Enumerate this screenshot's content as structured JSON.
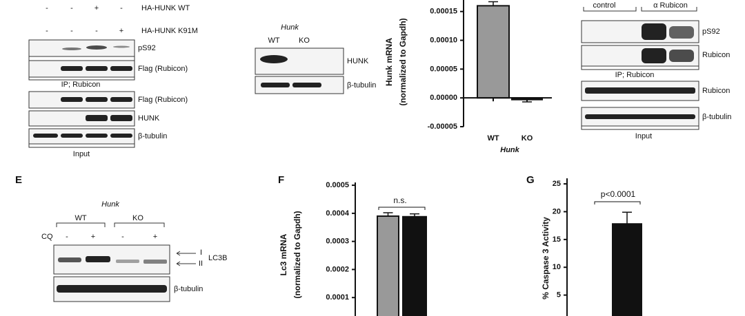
{
  "panels": {
    "a": {
      "rows": [
        [
          "-",
          "-",
          "+",
          "-"
        ],
        [
          "-",
          "-",
          "-",
          "+"
        ]
      ],
      "row_labels": [
        "HA-HUNK WT",
        "HA-HUNK K91M"
      ],
      "blot_labels": [
        "pS92",
        "Flag (Rubicon)",
        "Flag (Rubicon)",
        "HUNK",
        "β-tubulin"
      ],
      "ip_label": "IP; Rubicon",
      "input_label": "Input"
    },
    "b": {
      "gene": "Hunk",
      "groups": [
        "WT",
        "KO"
      ],
      "blot_labels": [
        "HUNK",
        "β-tubulin"
      ]
    },
    "d": {
      "groups": [
        "control",
        "α Rubicon"
      ],
      "blot_labels": [
        "pS92",
        "Rubicon",
        "Rubicon",
        "β-tubulin"
      ],
      "ip_label": "IP; Rubicon",
      "input_label": "Input"
    },
    "e": {
      "letter": "E",
      "gene": "Hunk",
      "groups": [
        "WT",
        "KO"
      ],
      "treatment": "CQ",
      "treatment_signs": [
        "-",
        "+",
        "-",
        "+"
      ],
      "band_labels": [
        "I",
        "II"
      ],
      "protein": "LC3B",
      "loading": "β-tubulin"
    }
  },
  "chart_data": [
    {
      "type": "bar",
      "y_label": [
        "Hunk mRNA",
        "(normalized to Gapdh)"
      ],
      "x_label": "Hunk",
      "categories": [
        "WT",
        "KO"
      ],
      "values": [
        0.00016,
        -3e-06
      ],
      "errors": [
        7e-06,
        4e-06
      ],
      "colors": [
        "#999999",
        "#111111"
      ],
      "ylim": [
        -5e-05,
        0.00017
      ],
      "yticks": [
        -5e-05,
        {
          "value": 0,
          "label": "0.00000"
        },
        5e-05,
        {
          "value": 0.0001,
          "label": "0.00010"
        },
        0.00015
      ]
    },
    {
      "type": "bar",
      "letter": "F",
      "y_label": [
        "Lc3 mRNA",
        "(normalized to Gapdh)"
      ],
      "categories": [
        null,
        null
      ],
      "values": [
        0.00039,
        0.000388
      ],
      "errors": [
        1.2e-05,
        1e-05
      ],
      "colors": [
        "#999999",
        "#111111"
      ],
      "annotation": "n.s.",
      "ylim": [
        0,
        0.00051
      ],
      "yticks": [
        0.0001,
        0.0002,
        0.0003,
        0.0004,
        0.0005
      ]
    },
    {
      "type": "bar",
      "letter": "G",
      "y_label": [
        "% Caspase 3 Activity"
      ],
      "categories": [
        null
      ],
      "values": [
        17.8
      ],
      "errors": [
        2.1
      ],
      "colors": [
        "#111111"
      ],
      "annotation": "p<0.0001",
      "ylim": [
        0,
        26
      ],
      "yticks": [
        5,
        10,
        15,
        20,
        25
      ]
    }
  ]
}
